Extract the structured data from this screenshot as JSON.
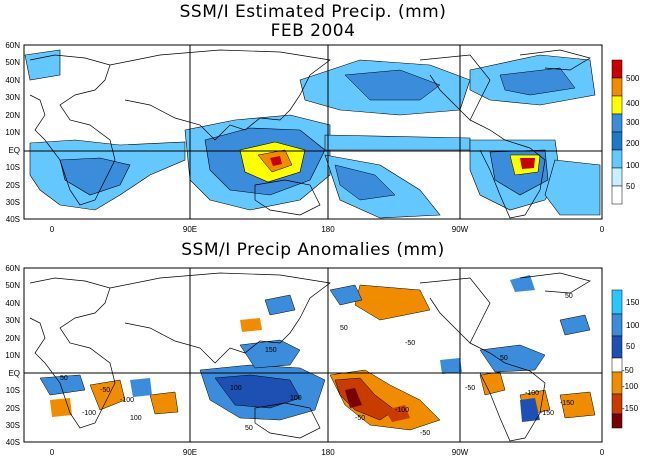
{
  "panels": [
    {
      "id": "precip",
      "title_line1": "SSM/I Estimated Precip. (mm)",
      "title_line2": "FEB 2004",
      "lat_labels": [
        "60N",
        "50N",
        "40N",
        "30N",
        "20N",
        "10N",
        "EQ",
        "10S",
        "20S",
        "30S",
        "40S"
      ],
      "lon_labels": [
        "0",
        "90E",
        "180",
        "90W",
        "0"
      ],
      "legend": {
        "labels": [
          "500",
          "400",
          "300",
          "200",
          "100",
          "50"
        ],
        "colors": [
          "#c80000",
          "#f08c00",
          "#ffff00",
          "#3c8cdc",
          "#64c8ff",
          "#c8f0ff",
          "#ffffff"
        ]
      }
    },
    {
      "id": "anomaly",
      "title_line1": "SSM/I Precip Anomalies (mm)",
      "lat_labels": [
        "60N",
        "50N",
        "40N",
        "30N",
        "20N",
        "10N",
        "EQ",
        "10S",
        "20S",
        "30S",
        "40S"
      ],
      "lon_labels": [
        "0",
        "90E",
        "180",
        "90W",
        "0"
      ],
      "legend": {
        "labels": [
          "150",
          "100",
          "50",
          "-50",
          "-100",
          "-150"
        ],
        "colors": [
          "#28c8ff",
          "#3c8cdc",
          "#1e50b4",
          "#ffffff",
          "#f08c00",
          "#c83c00",
          "#780000"
        ]
      }
    }
  ],
  "contour_labels": {
    "precip": [],
    "anomaly": [
      "50",
      "-50",
      "100",
      "-100",
      "150",
      "-150",
      "50",
      "-50",
      "100",
      "-100",
      "-150",
      "50",
      "-50",
      "100",
      "-100",
      "50",
      "-50",
      "-50",
      "50",
      "-100"
    ]
  }
}
